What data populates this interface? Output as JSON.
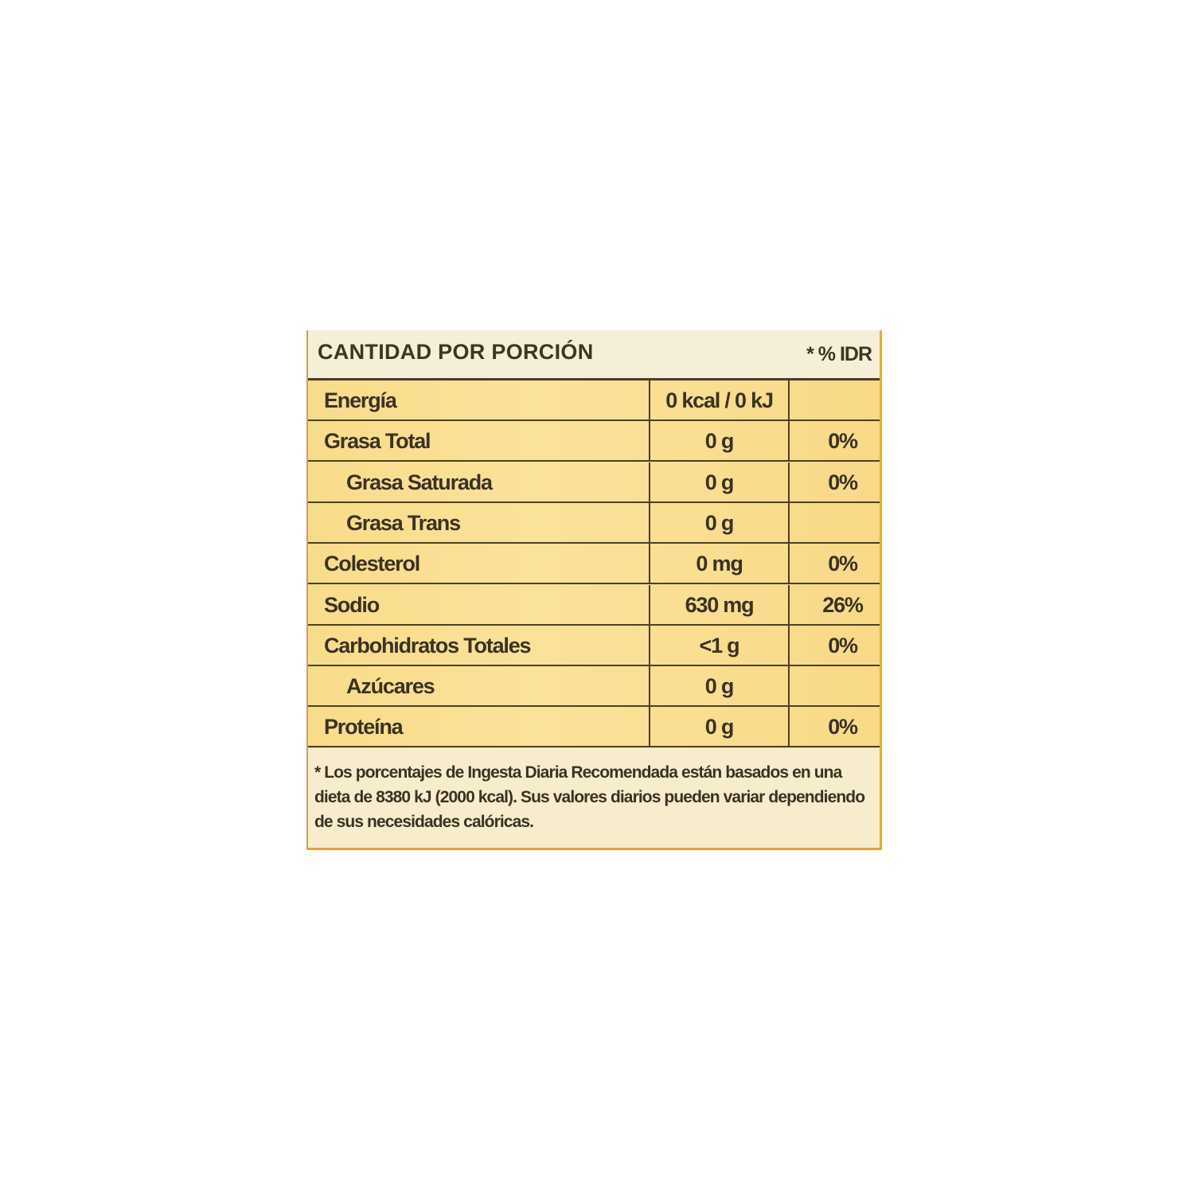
{
  "header": {
    "title": "CANTIDAD POR PORCIÓN",
    "idr_label": "* % IDR"
  },
  "rows": [
    {
      "name": "Energía",
      "amount": "0 kcal / 0 kJ",
      "idr": "",
      "indent": false
    },
    {
      "name": "Grasa Total",
      "amount": "0 g",
      "idr": "0%",
      "indent": false
    },
    {
      "name": "Grasa Saturada",
      "amount": "0 g",
      "idr": "0%",
      "indent": true
    },
    {
      "name": "Grasa Trans",
      "amount": "0 g",
      "idr": "",
      "indent": true
    },
    {
      "name": "Colesterol",
      "amount": "0 mg",
      "idr": "0%",
      "indent": false
    },
    {
      "name": "Sodio",
      "amount": "630 mg",
      "idr": "26%",
      "indent": false
    },
    {
      "name": "Carbohidratos Totales",
      "amount": "<1 g",
      "idr": "0%",
      "indent": false
    },
    {
      "name": "Azúcares",
      "amount": "0 g",
      "idr": "",
      "indent": true
    },
    {
      "name": "Proteína",
      "amount": "0 g",
      "idr": "0%",
      "indent": false
    }
  ],
  "footnote": "* Los porcentajes de Ingesta Diaria Recomendada están basados en una dieta de 8380 kJ (2000 kcal). Sus valores diarios pueden variar dependiendo de sus necesidades calóricas.",
  "colors": {
    "table_fill": "#fbe29a",
    "header_fill": "#f5efd8",
    "rule": "#4b3f25",
    "text": "#3a3223"
  }
}
